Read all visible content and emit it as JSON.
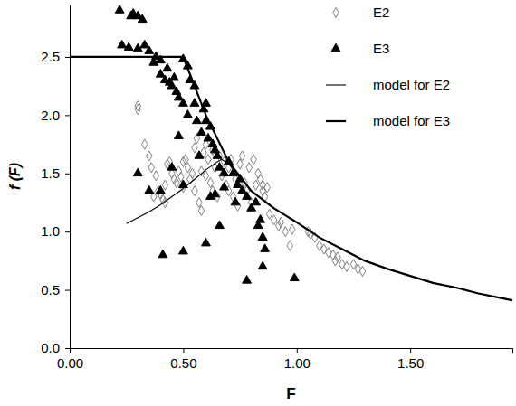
{
  "chart_data": {
    "type": "scatter",
    "x_label": "F",
    "y_label": "f (F)",
    "xlim": [
      0,
      1.95
    ],
    "ylim": [
      0,
      2.95
    ],
    "xticks": [
      {
        "value": 0,
        "label": "0.00"
      },
      {
        "value": 0.5,
        "label": "0.50"
      },
      {
        "value": 1,
        "label": "1.00"
      },
      {
        "value": 1.5,
        "label": "1.50"
      }
    ],
    "yticks": [
      {
        "value": 0,
        "label": "0.0"
      },
      0.5,
      {
        "value": 1,
        "label": "1.0"
      },
      1.5,
      {
        "value": 2,
        "label": "2.0"
      },
      2.5
    ],
    "legend": "upper right",
    "series": [
      {
        "name": "E2",
        "type": "scatter",
        "marker": "diamond",
        "color": "#7f7f7f",
        "x": [
          0.3,
          0.3,
          0.33,
          0.35,
          0.36,
          0.38,
          0.39,
          0.4,
          0.41,
          0.42,
          0.43,
          0.44,
          0.45,
          0.46,
          0.47,
          0.48,
          0.49,
          0.5,
          0.5,
          0.51,
          0.52,
          0.53,
          0.54,
          0.55,
          0.55,
          0.56,
          0.57,
          0.58,
          0.58,
          0.59,
          0.6,
          0.6,
          0.61,
          0.62,
          0.63,
          0.63,
          0.64,
          0.65,
          0.66,
          0.67,
          0.68,
          0.69,
          0.7,
          0.7,
          0.71,
          0.72,
          0.73,
          0.74,
          0.75,
          0.76,
          0.77,
          0.78,
          0.79,
          0.8,
          0.81,
          0.82,
          0.83,
          0.84,
          0.85,
          0.86,
          0.87,
          0.88,
          0.9,
          0.92,
          0.93,
          0.95,
          0.97,
          0.98,
          1.05,
          1.06,
          1.08,
          1.1,
          1.12,
          1.14,
          1.16,
          1.17,
          1.18,
          1.2,
          1.22,
          1.25,
          1.27,
          1.29,
          0.37,
          0.42,
          0.85
        ],
        "values": [
          2.08,
          2.05,
          1.75,
          1.65,
          1.55,
          1.48,
          1.35,
          1.32,
          1.28,
          1.4,
          1.58,
          1.6,
          1.5,
          1.45,
          1.42,
          1.52,
          1.47,
          1.38,
          1.6,
          1.62,
          1.55,
          1.45,
          1.5,
          1.72,
          1.35,
          1.8,
          1.25,
          1.18,
          1.52,
          1.68,
          1.75,
          1.48,
          1.62,
          1.42,
          1.35,
          1.7,
          1.55,
          1.3,
          1.65,
          1.48,
          1.6,
          1.4,
          1.35,
          1.55,
          1.62,
          1.3,
          1.45,
          1.22,
          1.58,
          1.65,
          1.42,
          1.35,
          1.55,
          1.25,
          1.62,
          1.4,
          1.5,
          1.45,
          1.35,
          1.3,
          1.38,
          1.15,
          1.1,
          1.05,
          1.08,
          1.0,
          0.88,
          1.02,
          1.0,
          0.98,
          0.95,
          0.88,
          0.85,
          0.82,
          0.8,
          0.75,
          0.78,
          0.72,
          0.7,
          0.72,
          0.68,
          0.66,
          1.3,
          1.25,
          1.4
        ]
      },
      {
        "name": "E3",
        "type": "scatter",
        "marker": "triangle",
        "color": "#000000",
        "x": [
          0.22,
          0.27,
          0.28,
          0.3,
          0.32,
          0.23,
          0.26,
          0.3,
          0.33,
          0.35,
          0.37,
          0.38,
          0.4,
          0.4,
          0.42,
          0.43,
          0.44,
          0.45,
          0.46,
          0.47,
          0.48,
          0.5,
          0.52,
          0.5,
          0.52,
          0.53,
          0.55,
          0.55,
          0.56,
          0.58,
          0.59,
          0.6,
          0.6,
          0.61,
          0.62,
          0.63,
          0.64,
          0.65,
          0.66,
          0.68,
          0.7,
          0.72,
          0.74,
          0.75,
          0.76,
          0.78,
          0.8,
          0.82,
          0.84,
          0.85,
          0.86,
          0.85,
          0.78,
          0.99,
          0.5,
          0.41,
          0.6,
          0.66,
          0.62,
          0.64,
          0.68,
          0.35,
          0.4,
          0.45,
          0.3,
          0.57,
          0.5,
          0.73,
          0.83,
          0.48
        ],
        "values": [
          2.9,
          2.85,
          2.87,
          2.85,
          2.82,
          2.6,
          2.58,
          2.57,
          2.6,
          2.55,
          2.45,
          2.5,
          2.47,
          2.35,
          2.3,
          2.4,
          2.28,
          2.25,
          2.32,
          2.2,
          2.15,
          2.48,
          2.42,
          2.1,
          2.0,
          2.3,
          2.25,
          2.1,
          1.95,
          1.85,
          2.05,
          1.95,
          2.1,
          1.8,
          1.9,
          1.75,
          1.7,
          1.65,
          1.55,
          1.5,
          1.6,
          1.5,
          1.4,
          1.45,
          1.35,
          1.3,
          1.2,
          1.25,
          1.1,
          0.95,
          0.85,
          0.7,
          0.58,
          0.6,
          0.83,
          0.8,
          0.9,
          1.05,
          1.3,
          1.32,
          1.38,
          1.35,
          1.35,
          1.55,
          1.5,
          1.65,
          1.4,
          1.25,
          1.05,
          1.82
        ]
      },
      {
        "name": "model for E2",
        "type": "line",
        "line_style": "thin",
        "color": "#000000",
        "x": [
          0.25,
          0.3,
          0.35,
          0.4,
          0.45,
          0.5,
          0.55,
          0.6,
          0.65,
          0.67,
          0.7,
          0.75,
          0.8,
          0.9,
          1.0,
          1.1,
          1.2,
          1.3,
          1.4,
          1.5,
          1.6,
          1.7,
          1.8,
          1.9,
          1.95
        ],
        "values": [
          1.07,
          1.12,
          1.17,
          1.23,
          1.3,
          1.37,
          1.45,
          1.53,
          1.6,
          1.62,
          1.58,
          1.47,
          1.35,
          1.2,
          1.08,
          0.95,
          0.85,
          0.75,
          0.68,
          0.62,
          0.56,
          0.52,
          0.47,
          0.43,
          0.41
        ]
      },
      {
        "name": "model for E3",
        "type": "line",
        "line_style": "thick",
        "color": "#000000",
        "x": [
          0,
          0.5,
          0.6,
          0.7,
          0.8,
          0.9,
          1.0,
          1.1,
          1.2,
          1.3,
          1.4,
          1.5,
          1.6,
          1.7,
          1.8,
          1.9,
          1.95
        ],
        "values": [
          2.5,
          2.5,
          2.0,
          1.6,
          1.35,
          1.2,
          1.08,
          0.95,
          0.85,
          0.75,
          0.68,
          0.62,
          0.56,
          0.52,
          0.47,
          0.43,
          0.41
        ]
      }
    ]
  }
}
